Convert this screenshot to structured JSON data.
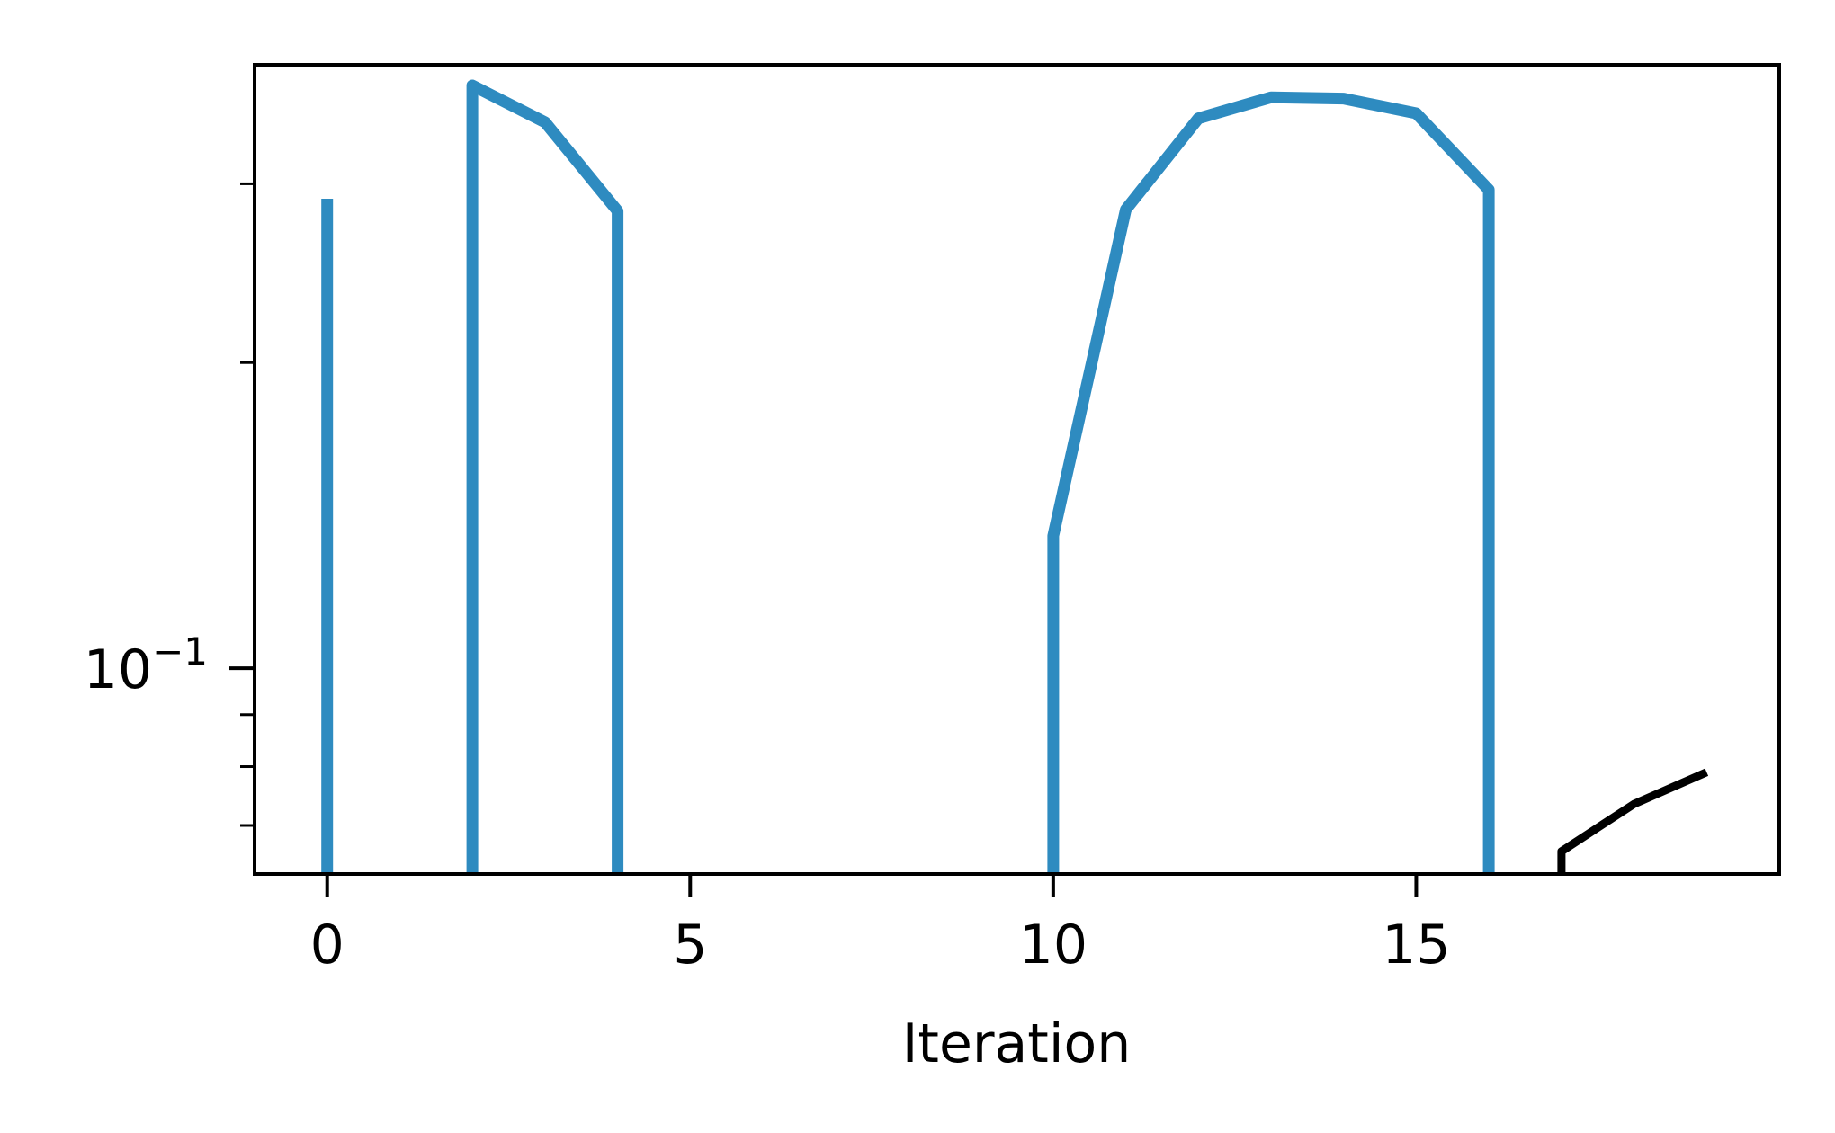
{
  "chart_data": {
    "type": "line",
    "title": "",
    "xlabel": "Iteration",
    "ylabel": "",
    "y_scale": "log",
    "xlim": [
      -1,
      20
    ],
    "ylim": [
      0.0627,
      0.393
    ],
    "x_ticks": [
      0,
      5,
      10,
      15
    ],
    "x_tick_labels": [
      "0",
      "5",
      "10",
      "15"
    ],
    "y_major_ticks": [
      0.1
    ],
    "y_major_tick_labels": [
      {
        "base": "10",
        "exp": "−1"
      }
    ],
    "y_minor_ticks": [
      0.07,
      0.08,
      0.09,
      0.2,
      0.3,
      0.4
    ],
    "grid": false,
    "legend": "none",
    "series": [
      {
        "color": "#2e8bc0",
        "segments": [
          [
            [
              0,
              0.29
            ],
            [
              0,
              0.0627
            ]
          ],
          [
            [
              2,
              0.0627
            ],
            [
              2,
              0.375
            ],
            [
              3,
              0.345
            ],
            [
              4,
              0.282
            ],
            [
              4,
              0.0627
            ]
          ],
          [
            [
              10,
              0.0627
            ],
            [
              10,
              0.135
            ],
            [
              11,
              0.283
            ],
            [
              12,
              0.348
            ],
            [
              13,
              0.365
            ],
            [
              14,
              0.364
            ],
            [
              15,
              0.352
            ],
            [
              16,
              0.296
            ],
            [
              16,
              0.0627
            ]
          ]
        ]
      },
      {
        "color": "#000000",
        "segments": [
          [
            [
              17,
              0.0627
            ],
            [
              17,
              0.066
            ],
            [
              18,
              0.0735
            ],
            [
              19,
              0.079
            ]
          ]
        ]
      }
    ]
  }
}
